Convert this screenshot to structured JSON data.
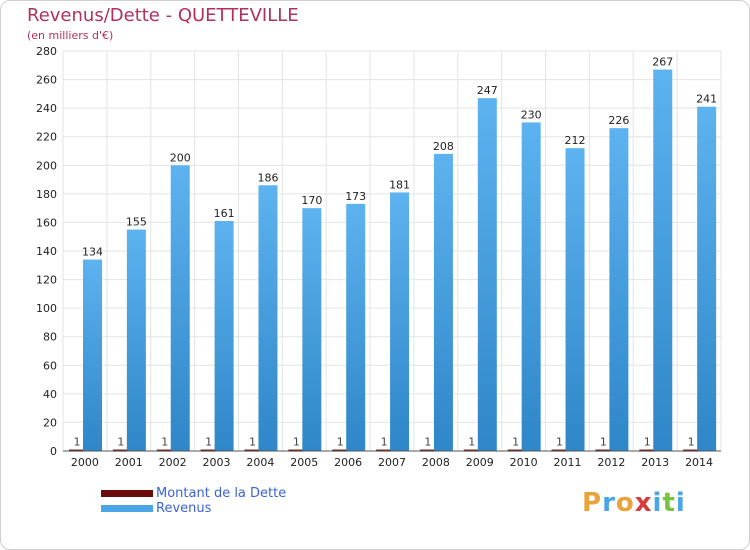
{
  "title": "Revenus/Dette - QUETTEVILLE",
  "subtitle": "(en milliers d'€)",
  "colors": {
    "title": "#b03060",
    "revenus": "#4aa6e6",
    "dette": "#6b0d0d",
    "grid": "#e4e4e4",
    "legend_text": "#3a63d8"
  },
  "chart_data": {
    "type": "bar",
    "title": "Revenus/Dette - QUETTEVILLE",
    "subtitle": "(en milliers d'€)",
    "categories": [
      "2000",
      "2001",
      "2002",
      "2003",
      "2004",
      "2005",
      "2006",
      "2007",
      "2008",
      "2009",
      "2010",
      "2011",
      "2012",
      "2013",
      "2014"
    ],
    "series": [
      {
        "name": "Montant de la Dette",
        "values": [
          1,
          1,
          1,
          1,
          1,
          1,
          1,
          1,
          1,
          1,
          1,
          1,
          1,
          1,
          1
        ]
      },
      {
        "name": "Revenus",
        "values": [
          134,
          155,
          200,
          161,
          186,
          170,
          173,
          181,
          208,
          247,
          230,
          212,
          226,
          267,
          241
        ]
      }
    ],
    "ylim": [
      0,
      280
    ],
    "yticks": [
      0,
      20,
      40,
      60,
      80,
      100,
      120,
      140,
      160,
      180,
      200,
      220,
      240,
      260,
      280
    ],
    "grid": true,
    "legend_position": "bottom-left"
  },
  "legend": [
    {
      "label": "Montant de la Dette",
      "color": "#6b0d0d"
    },
    {
      "label": "Revenus",
      "color": "#4aa6e6"
    }
  ],
  "brand": {
    "letters": [
      "P",
      "r",
      "o",
      "x",
      "i",
      "t",
      "i"
    ],
    "colors": [
      "#e8a33a",
      "#4aa6e6",
      "#e8a33a",
      "#d93a3a",
      "#4aa6e6",
      "#7cc242",
      "#4aa6e6"
    ]
  }
}
